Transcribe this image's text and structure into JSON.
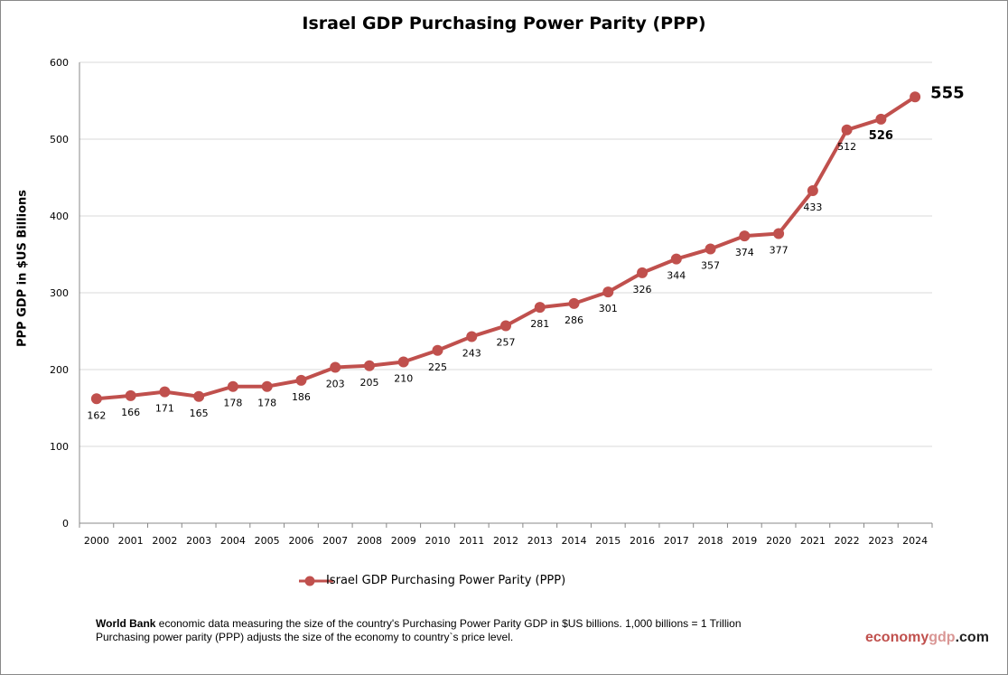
{
  "chart_data": {
    "type": "line",
    "title": "Israel GDP Purchasing Power Parity (PPP)",
    "xlabel": "",
    "ylabel": "PPP GDP in $US Billions",
    "categories": [
      "2000",
      "2001",
      "2002",
      "2003",
      "2004",
      "2005",
      "2006",
      "2007",
      "2008",
      "2009",
      "2010",
      "2011",
      "2012",
      "2013",
      "2014",
      "2015",
      "2016",
      "2017",
      "2018",
      "2019",
      "2020",
      "2021",
      "2022",
      "2023",
      "2024"
    ],
    "series": [
      {
        "name": "Israel GDP Purchasing Power Parity (PPP)",
        "values": [
          162,
          166,
          171,
          165,
          178,
          178,
          186,
          203,
          205,
          210,
          225,
          243,
          257,
          281,
          286,
          301,
          326,
          344,
          357,
          374,
          377,
          433,
          512,
          526,
          555
        ],
        "color": "#c0504d"
      }
    ],
    "ylim": [
      0,
      600
    ],
    "yticks": [
      0,
      100,
      200,
      300,
      400,
      500,
      600
    ],
    "grid": true,
    "legend": "bottom"
  },
  "footer": {
    "source_bold": "World Bank",
    "line1": " economic data  measuring the size of the country's Purchasing Power Parity GDP in $US billions. 1,000 billions = 1 Trillion",
    "line2": "Purchasing power parity (PPP) adjusts the size of the economy to country`s price level.",
    "brand_a": "economy",
    "brand_b": "gdp",
    "brand_c": ".com"
  }
}
